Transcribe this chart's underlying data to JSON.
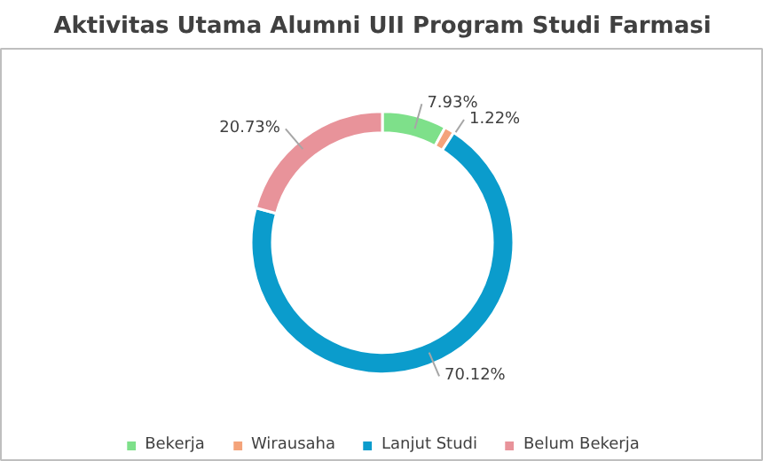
{
  "chart_data": {
    "type": "donut",
    "title": "Aktivitas Utama Alumni UII Program Studi Farmasi",
    "categories": [
      "Bekerja",
      "Wirausaha",
      "Lanjut Studi",
      "Belum Bekerja"
    ],
    "values": [
      7.93,
      1.22,
      70.12,
      20.73
    ],
    "colors": [
      "#7ee08a",
      "#f4a37a",
      "#0b9ccc",
      "#e8939a"
    ],
    "value_labels": [
      "7.93%",
      "1.22%",
      "70.12%",
      "20.73%"
    ],
    "legend": "bottom"
  }
}
